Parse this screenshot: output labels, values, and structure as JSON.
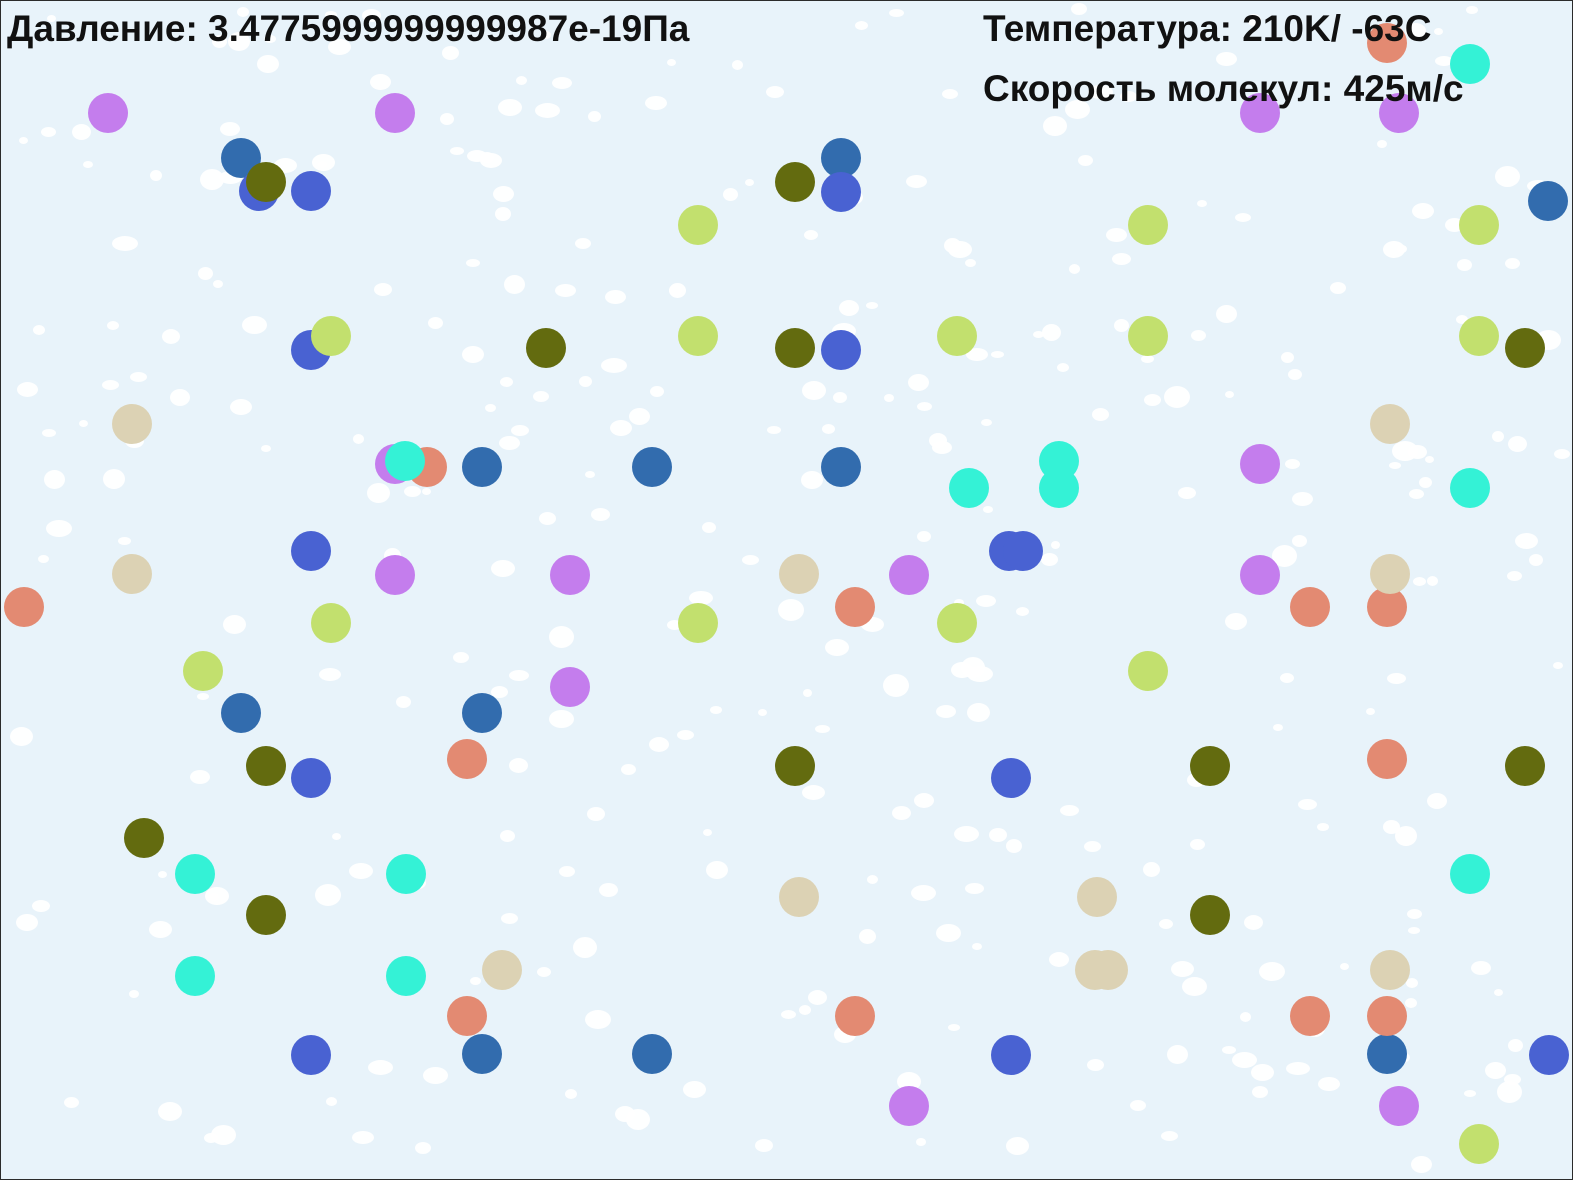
{
  "hud": {
    "pressure": "Давление: 3.4775999999999987e-19Па",
    "temperature": "Температура: 210K/ -63C",
    "speed": "Скорость молекул: 425м/с"
  },
  "colors": {
    "background": "#e8f3fa",
    "speck": "#ffffff",
    "purple": "#c47ded",
    "steel-blue": "#326cae",
    "royal-blue": "#4962d2",
    "olive": "#636b0f",
    "lime": "#c2e06e",
    "salmon": "#e38a72",
    "tan": "#dcd2b4",
    "cyan": "#34f2d6"
  }
}
